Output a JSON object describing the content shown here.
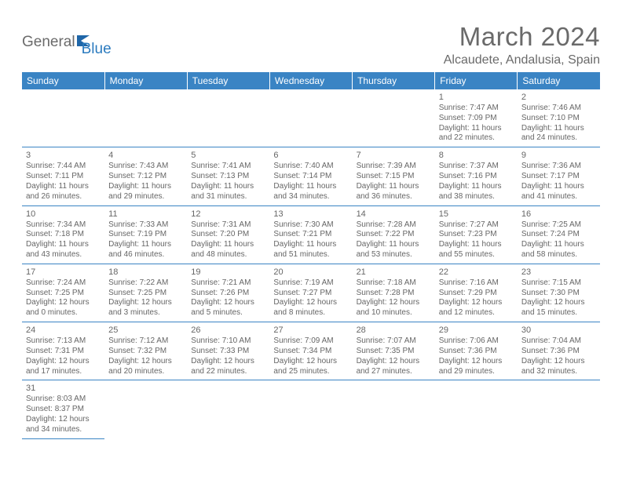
{
  "logo": {
    "part1": "General",
    "part2": "Blue"
  },
  "title": "March 2024",
  "location": "Alcaudete, Andalusia, Spain",
  "colors": {
    "header_bg": "#3a84c4",
    "header_text": "#ffffff",
    "border": "#3a84c4",
    "body_text": "#666666",
    "logo_gray": "#6b6b6b",
    "logo_blue": "#2b7bbf",
    "page_bg": "#ffffff"
  },
  "fonts": {
    "title_size": 33,
    "location_size": 16,
    "header_size": 12,
    "daynum_size": 11,
    "cell_size": 10
  },
  "weekdays": [
    "Sunday",
    "Monday",
    "Tuesday",
    "Wednesday",
    "Thursday",
    "Friday",
    "Saturday"
  ],
  "weeks": [
    [
      null,
      null,
      null,
      null,
      null,
      {
        "n": "1",
        "sr": "Sunrise: 7:47 AM",
        "ss": "Sunset: 7:09 PM",
        "dl": "Daylight: 11 hours and 22 minutes."
      },
      {
        "n": "2",
        "sr": "Sunrise: 7:46 AM",
        "ss": "Sunset: 7:10 PM",
        "dl": "Daylight: 11 hours and 24 minutes."
      }
    ],
    [
      {
        "n": "3",
        "sr": "Sunrise: 7:44 AM",
        "ss": "Sunset: 7:11 PM",
        "dl": "Daylight: 11 hours and 26 minutes."
      },
      {
        "n": "4",
        "sr": "Sunrise: 7:43 AM",
        "ss": "Sunset: 7:12 PM",
        "dl": "Daylight: 11 hours and 29 minutes."
      },
      {
        "n": "5",
        "sr": "Sunrise: 7:41 AM",
        "ss": "Sunset: 7:13 PM",
        "dl": "Daylight: 11 hours and 31 minutes."
      },
      {
        "n": "6",
        "sr": "Sunrise: 7:40 AM",
        "ss": "Sunset: 7:14 PM",
        "dl": "Daylight: 11 hours and 34 minutes."
      },
      {
        "n": "7",
        "sr": "Sunrise: 7:39 AM",
        "ss": "Sunset: 7:15 PM",
        "dl": "Daylight: 11 hours and 36 minutes."
      },
      {
        "n": "8",
        "sr": "Sunrise: 7:37 AM",
        "ss": "Sunset: 7:16 PM",
        "dl": "Daylight: 11 hours and 38 minutes."
      },
      {
        "n": "9",
        "sr": "Sunrise: 7:36 AM",
        "ss": "Sunset: 7:17 PM",
        "dl": "Daylight: 11 hours and 41 minutes."
      }
    ],
    [
      {
        "n": "10",
        "sr": "Sunrise: 7:34 AM",
        "ss": "Sunset: 7:18 PM",
        "dl": "Daylight: 11 hours and 43 minutes."
      },
      {
        "n": "11",
        "sr": "Sunrise: 7:33 AM",
        "ss": "Sunset: 7:19 PM",
        "dl": "Daylight: 11 hours and 46 minutes."
      },
      {
        "n": "12",
        "sr": "Sunrise: 7:31 AM",
        "ss": "Sunset: 7:20 PM",
        "dl": "Daylight: 11 hours and 48 minutes."
      },
      {
        "n": "13",
        "sr": "Sunrise: 7:30 AM",
        "ss": "Sunset: 7:21 PM",
        "dl": "Daylight: 11 hours and 51 minutes."
      },
      {
        "n": "14",
        "sr": "Sunrise: 7:28 AM",
        "ss": "Sunset: 7:22 PM",
        "dl": "Daylight: 11 hours and 53 minutes."
      },
      {
        "n": "15",
        "sr": "Sunrise: 7:27 AM",
        "ss": "Sunset: 7:23 PM",
        "dl": "Daylight: 11 hours and 55 minutes."
      },
      {
        "n": "16",
        "sr": "Sunrise: 7:25 AM",
        "ss": "Sunset: 7:24 PM",
        "dl": "Daylight: 11 hours and 58 minutes."
      }
    ],
    [
      {
        "n": "17",
        "sr": "Sunrise: 7:24 AM",
        "ss": "Sunset: 7:25 PM",
        "dl": "Daylight: 12 hours and 0 minutes."
      },
      {
        "n": "18",
        "sr": "Sunrise: 7:22 AM",
        "ss": "Sunset: 7:25 PM",
        "dl": "Daylight: 12 hours and 3 minutes."
      },
      {
        "n": "19",
        "sr": "Sunrise: 7:21 AM",
        "ss": "Sunset: 7:26 PM",
        "dl": "Daylight: 12 hours and 5 minutes."
      },
      {
        "n": "20",
        "sr": "Sunrise: 7:19 AM",
        "ss": "Sunset: 7:27 PM",
        "dl": "Daylight: 12 hours and 8 minutes."
      },
      {
        "n": "21",
        "sr": "Sunrise: 7:18 AM",
        "ss": "Sunset: 7:28 PM",
        "dl": "Daylight: 12 hours and 10 minutes."
      },
      {
        "n": "22",
        "sr": "Sunrise: 7:16 AM",
        "ss": "Sunset: 7:29 PM",
        "dl": "Daylight: 12 hours and 12 minutes."
      },
      {
        "n": "23",
        "sr": "Sunrise: 7:15 AM",
        "ss": "Sunset: 7:30 PM",
        "dl": "Daylight: 12 hours and 15 minutes."
      }
    ],
    [
      {
        "n": "24",
        "sr": "Sunrise: 7:13 AM",
        "ss": "Sunset: 7:31 PM",
        "dl": "Daylight: 12 hours and 17 minutes."
      },
      {
        "n": "25",
        "sr": "Sunrise: 7:12 AM",
        "ss": "Sunset: 7:32 PM",
        "dl": "Daylight: 12 hours and 20 minutes."
      },
      {
        "n": "26",
        "sr": "Sunrise: 7:10 AM",
        "ss": "Sunset: 7:33 PM",
        "dl": "Daylight: 12 hours and 22 minutes."
      },
      {
        "n": "27",
        "sr": "Sunrise: 7:09 AM",
        "ss": "Sunset: 7:34 PM",
        "dl": "Daylight: 12 hours and 25 minutes."
      },
      {
        "n": "28",
        "sr": "Sunrise: 7:07 AM",
        "ss": "Sunset: 7:35 PM",
        "dl": "Daylight: 12 hours and 27 minutes."
      },
      {
        "n": "29",
        "sr": "Sunrise: 7:06 AM",
        "ss": "Sunset: 7:36 PM",
        "dl": "Daylight: 12 hours and 29 minutes."
      },
      {
        "n": "30",
        "sr": "Sunrise: 7:04 AM",
        "ss": "Sunset: 7:36 PM",
        "dl": "Daylight: 12 hours and 32 minutes."
      }
    ],
    [
      {
        "n": "31",
        "sr": "Sunrise: 8:03 AM",
        "ss": "Sunset: 8:37 PM",
        "dl": "Daylight: 12 hours and 34 minutes."
      },
      null,
      null,
      null,
      null,
      null,
      null
    ]
  ]
}
